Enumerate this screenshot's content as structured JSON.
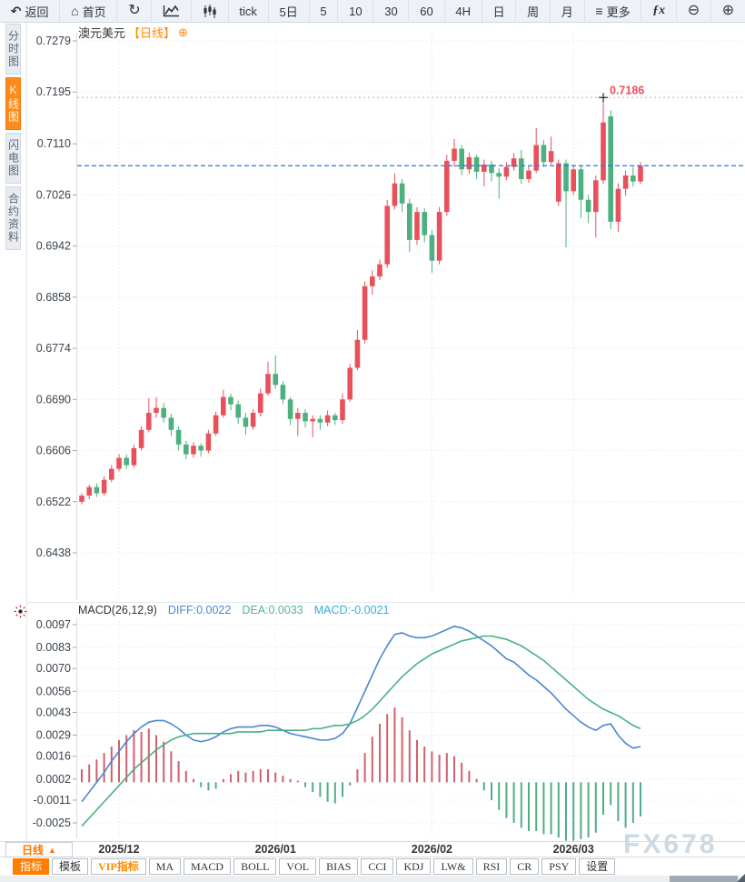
{
  "toolbar": {
    "back": "返回",
    "home": "首页",
    "tick": "tick",
    "periods": [
      "5日",
      "5",
      "10",
      "30",
      "60",
      "4H",
      "日",
      "周",
      "月"
    ],
    "more": "更多",
    "formula": "ƒx"
  },
  "sidebar": {
    "items": [
      {
        "label": "分时图",
        "active": false
      },
      {
        "label": "K线图",
        "active": true
      },
      {
        "label": "闪电图",
        "active": false
      },
      {
        "label": "合约资料",
        "active": false
      }
    ]
  },
  "chart": {
    "symbol": "澳元美元",
    "period_tag": "【日线】"
  },
  "macd_header": {
    "name": "MACD(26,12,9)",
    "diff_label": "DIFF:0.0022",
    "dea_label": "DEA:0.0033",
    "macd_label": "MACD:-0.0021"
  },
  "bottom": {
    "period_label": "日线",
    "period_arrow": "▲",
    "tabs": [
      "指标",
      "模板",
      "VIP指标",
      "MA",
      "MACD",
      "BOLL",
      "VOL",
      "BIAS",
      "CCI",
      "KDJ",
      "LW&",
      "RSI",
      "CR",
      "PSY",
      "设置"
    ]
  },
  "watermark": "FX678",
  "colors": {
    "candle_up": "#e8515c",
    "candle_down": "#4cb07f",
    "hist_up": "#d0606c",
    "hist_down": "#52ad85",
    "diff_line": "#4a86d1",
    "dea_line": "#49b186",
    "last_price_line": "#1e7fe0",
    "high_line": "#f0919f",
    "accent": "#ff7d00",
    "grid": "#ececf0",
    "axis_text": "#3a434d"
  },
  "chart_data": {
    "type": "candlestick",
    "title": "澳元美元 日线 (AUD/USD daily with MACD)",
    "price_scale": 0.0001,
    "x_ticks": [
      {
        "label": "2025/12",
        "index": 5
      },
      {
        "label": "2026/01",
        "index": 26
      },
      {
        "label": "2026/02",
        "index": 47
      },
      {
        "label": "2026/03",
        "index": 66
      }
    ],
    "main": {
      "y_ticks": [
        "0.7279",
        "0.7195",
        "0.7110",
        "0.7026",
        "0.6942",
        "0.6858",
        "0.6774",
        "0.6690",
        "0.6606",
        "0.6522",
        "0.6438"
      ],
      "last_price": 0.7074,
      "high_marker": {
        "index": 70,
        "price": 0.7186,
        "label": "0.7186"
      },
      "open": [
        6522,
        6532,
        6546,
        6536,
        6558,
        6576,
        6594,
        6582,
        6610,
        6640,
        6668,
        6676,
        6660,
        6640,
        6616,
        6600,
        6614,
        6606,
        6634,
        6664,
        6694,
        6682,
        6660,
        6645,
        6668,
        6700,
        6732,
        6714,
        6690,
        6658,
        6668,
        6654,
        6658,
        6652,
        6664,
        6656,
        6690,
        6742,
        6788,
        6876,
        6892,
        6912,
        7008,
        7045,
        7012,
        6952,
        6998,
        6960,
        6918,
        6998,
        7082,
        7102,
        7068,
        7088,
        7064,
        7076,
        7062,
        7056,
        7072,
        7086,
        7052,
        7066,
        7108,
        7080,
        7015,
        7078,
        7032,
        7068,
        7018,
        6998,
        7050,
        7155,
        6982,
        7036,
        7058,
        7048
      ],
      "high": [
        6536,
        6550,
        6552,
        6564,
        6582,
        6600,
        6600,
        6616,
        6646,
        6692,
        6694,
        6684,
        6666,
        6646,
        6622,
        6620,
        6618,
        6640,
        6670,
        6706,
        6700,
        6688,
        6668,
        6674,
        6708,
        6752,
        6762,
        6720,
        6694,
        6676,
        6674,
        6664,
        6664,
        6672,
        6668,
        6700,
        6748,
        6804,
        6884,
        6902,
        6920,
        7018,
        7062,
        7052,
        7020,
        7006,
        7004,
        6968,
        7006,
        7092,
        7118,
        7108,
        7096,
        7092,
        7084,
        7082,
        7070,
        7080,
        7095,
        7100,
        7074,
        7136,
        7116,
        7122,
        7084,
        7084,
        7076,
        7074,
        7026,
        7058,
        7186,
        7165,
        7045,
        7066,
        7072,
        7080
      ],
      "low": [
        6518,
        6526,
        6530,
        6532,
        6554,
        6572,
        6576,
        6578,
        6606,
        6636,
        6660,
        6652,
        6630,
        6606,
        6592,
        6594,
        6596,
        6602,
        6630,
        6660,
        6672,
        6650,
        6632,
        6640,
        6662,
        6696,
        6708,
        6682,
        6648,
        6630,
        6644,
        6628,
        6640,
        6646,
        6648,
        6650,
        6686,
        6738,
        6782,
        6862,
        6886,
        6906,
        7002,
        6998,
        6932,
        6944,
        6948,
        6898,
        6912,
        6992,
        7072,
        7058,
        7060,
        7052,
        7040,
        7048,
        7020,
        7050,
        7066,
        7044,
        7046,
        7062,
        7072,
        7076,
        7008,
        6940,
        7026,
        6988,
        6980,
        6956,
        7044,
        6970,
        6965,
        7025,
        7040,
        7044
      ],
      "close": [
        6532,
        6546,
        6536,
        6558,
        6576,
        6594,
        6582,
        6610,
        6640,
        6668,
        6676,
        6660,
        6640,
        6616,
        6600,
        6614,
        6606,
        6634,
        6664,
        6694,
        6682,
        6660,
        6645,
        6668,
        6700,
        6732,
        6714,
        6690,
        6658,
        6668,
        6654,
        6658,
        6652,
        6664,
        6656,
        6690,
        6742,
        6788,
        6876,
        6892,
        6912,
        7008,
        7045,
        7012,
        6952,
        6998,
        6960,
        6918,
        6998,
        7082,
        7102,
        7068,
        7088,
        7064,
        7076,
        7062,
        7056,
        7072,
        7086,
        7052,
        7066,
        7108,
        7080,
        7098,
        7078,
        7032,
        7068,
        7018,
        6998,
        7050,
        7145,
        6982,
        7036,
        7058,
        7048,
        7074
      ]
    },
    "macd": {
      "value_scale": 0.0001,
      "y_ticks": [
        "0.0097",
        "0.0083",
        "0.0070",
        "0.0056",
        "0.0043",
        "0.0029",
        "0.0016",
        "0.0002",
        "-0.0011",
        "-0.0025"
      ],
      "legend": [
        "DIFF",
        "DEA",
        "MACD"
      ],
      "diff": [
        -12,
        -6,
        0,
        6,
        13,
        19,
        25,
        30,
        34,
        37,
        38,
        38,
        36,
        33,
        29,
        26,
        25,
        26,
        28,
        31,
        33,
        34,
        34,
        34,
        35,
        35,
        34,
        32,
        30,
        29,
        28,
        27,
        26,
        26,
        27,
        30,
        36,
        46,
        56,
        66,
        76,
        84,
        91,
        92,
        90,
        89,
        89,
        90,
        92,
        94,
        96,
        95,
        93,
        90,
        87,
        84,
        80,
        76,
        74,
        70,
        66,
        63,
        59,
        55,
        50,
        45,
        41,
        37,
        34,
        32,
        35,
        36,
        29,
        24,
        21,
        22
      ],
      "dea": [
        -27,
        -22,
        -17,
        -12,
        -7,
        -2,
        3,
        8,
        12,
        16,
        20,
        23,
        26,
        28,
        29,
        30,
        30,
        30,
        30,
        30,
        30,
        31,
        31,
        31,
        31,
        32,
        32,
        32,
        32,
        32,
        32,
        33,
        33,
        34,
        35,
        35,
        36,
        38,
        41,
        45,
        50,
        55,
        60,
        65,
        69,
        73,
        76,
        79,
        81,
        83,
        85,
        87,
        88,
        89,
        90,
        90,
        89,
        88,
        86,
        84,
        81,
        78,
        75,
        71,
        67,
        63,
        59,
        55,
        51,
        48,
        45,
        43,
        41,
        38,
        35,
        33
      ],
      "hist": [
        8,
        11,
        14,
        18,
        22,
        26,
        29,
        32,
        31,
        33,
        29,
        25,
        19,
        13,
        7,
        2,
        -3,
        -5,
        -4,
        2,
        5,
        7,
        6,
        7,
        8,
        8,
        6,
        4,
        2,
        1,
        -3,
        -6,
        -9,
        -12,
        -13,
        -9,
        -2,
        8,
        18,
        28,
        36,
        42,
        46,
        40,
        32,
        26,
        22,
        19,
        17,
        18,
        16,
        12,
        7,
        2,
        -5,
        -11,
        -17,
        -22,
        -25,
        -28,
        -30,
        -30,
        -32,
        -32,
        -34,
        -36,
        -36,
        -35,
        -34,
        -31,
        -20,
        -14,
        -24,
        -28,
        -25,
        -21
      ]
    }
  }
}
